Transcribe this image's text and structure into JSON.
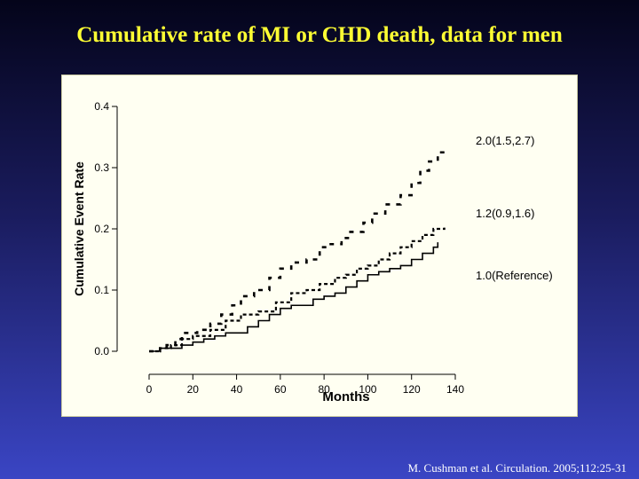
{
  "title": "Cumulative rate of MI or CHD death, data for men",
  "citation": "M. Cushman et al. Circulation. 2005;112:25-31",
  "chart_data": {
    "type": "line",
    "step": true,
    "xlabel": "Months",
    "ylabel": "Cumulative Event Rate",
    "xlim": [
      0,
      140
    ],
    "ylim": [
      0,
      0.4
    ],
    "xticks": [
      0,
      20,
      40,
      60,
      80,
      100,
      120,
      140
    ],
    "yticks": [
      0.0,
      0.1,
      0.2,
      0.3,
      0.4
    ],
    "grid": false,
    "series": [
      {
        "name": "2.0(1.5,2.7)",
        "style": "dashed-heavy",
        "x": [
          0,
          5,
          8,
          12,
          15,
          22,
          28,
          33,
          38,
          42,
          48,
          55,
          60,
          65,
          72,
          78,
          82,
          88,
          92,
          98,
          102,
          108,
          115,
          120,
          124,
          128,
          132,
          136
        ],
        "y": [
          0.0,
          0.005,
          0.01,
          0.02,
          0.03,
          0.035,
          0.045,
          0.06,
          0.075,
          0.09,
          0.1,
          0.12,
          0.135,
          0.145,
          0.15,
          0.17,
          0.175,
          0.185,
          0.195,
          0.21,
          0.225,
          0.24,
          0.255,
          0.275,
          0.295,
          0.31,
          0.325,
          0.33
        ]
      },
      {
        "name": "1.2(0.9,1.6)",
        "style": "dashed",
        "x": [
          0,
          5,
          10,
          15,
          20,
          28,
          35,
          42,
          50,
          58,
          65,
          72,
          78,
          85,
          90,
          95,
          100,
          105,
          110,
          115,
          120,
          125,
          130,
          135
        ],
        "y": [
          0.0,
          0.005,
          0.01,
          0.02,
          0.025,
          0.035,
          0.05,
          0.06,
          0.065,
          0.08,
          0.095,
          0.1,
          0.11,
          0.12,
          0.125,
          0.135,
          0.14,
          0.15,
          0.16,
          0.17,
          0.18,
          0.19,
          0.2,
          0.202
        ]
      },
      {
        "name": "1.0(Reference)",
        "style": "solid",
        "x": [
          0,
          5,
          15,
          20,
          25,
          30,
          35,
          45,
          50,
          55,
          60,
          65,
          75,
          80,
          85,
          90,
          95,
          100,
          105,
          110,
          115,
          120,
          125,
          130,
          132
        ],
        "y": [
          0.0,
          0.005,
          0.01,
          0.015,
          0.02,
          0.025,
          0.03,
          0.04,
          0.05,
          0.06,
          0.07,
          0.075,
          0.085,
          0.09,
          0.095,
          0.105,
          0.115,
          0.125,
          0.13,
          0.135,
          0.14,
          0.15,
          0.16,
          0.17,
          0.178
        ]
      }
    ]
  }
}
